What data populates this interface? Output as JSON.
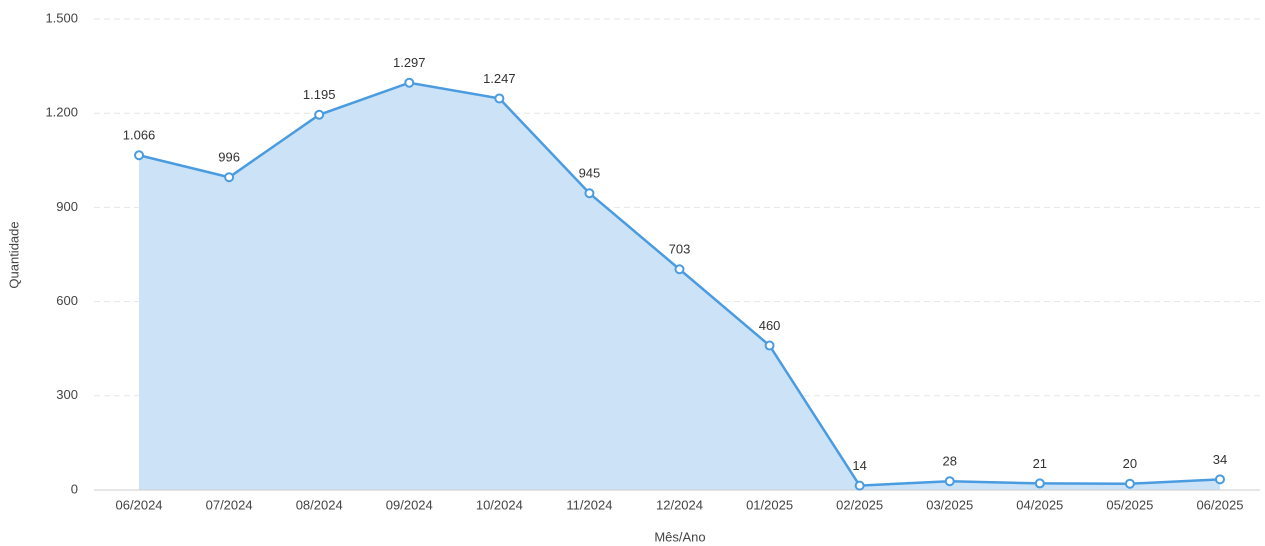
{
  "chart_data": {
    "type": "area",
    "x_label": "Mês/Ano",
    "y_label": "Quantidade",
    "categories": [
      "06/2024",
      "07/2024",
      "08/2024",
      "09/2024",
      "10/2024",
      "11/2024",
      "12/2024",
      "01/2025",
      "02/2025",
      "03/2025",
      "04/2025",
      "05/2025",
      "06/2025"
    ],
    "values": [
      1066,
      996,
      1195,
      1297,
      1247,
      945,
      703,
      460,
      14,
      28,
      21,
      20,
      34
    ],
    "value_labels": [
      "1.066",
      "996",
      "1.195",
      "1.297",
      "1.247",
      "945",
      "703",
      "460",
      "14",
      "28",
      "21",
      "20",
      "34"
    ],
    "color": "#4a9be0",
    "fill_color": "#cce3f7",
    "ylim": [
      0,
      1500
    ],
    "yticks": [
      0,
      300,
      600,
      900,
      {
        "value": 1200,
        "label": "1.200"
      },
      {
        "value": 1500,
        "label": "1.500"
      }
    ],
    "grid": true
  }
}
